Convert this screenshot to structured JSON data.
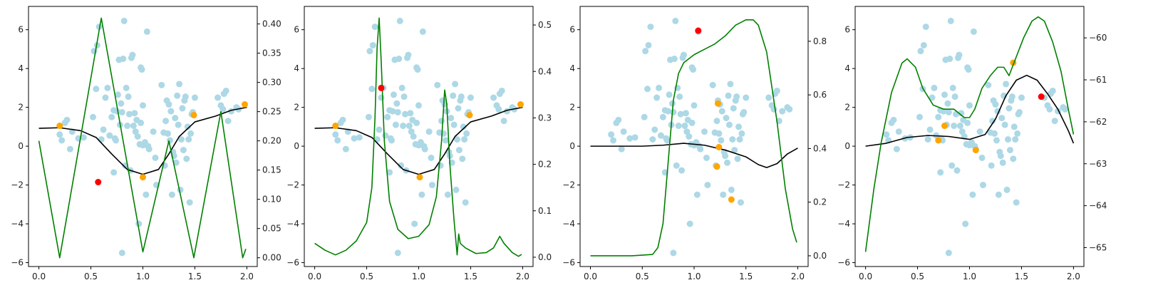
{
  "figure": {
    "background": "#ffffff"
  },
  "colors": {
    "scatter": "#add8e6",
    "orange": "#ffa500",
    "red": "#ff0000",
    "black_line": "#000000",
    "green_line": "#008000",
    "axes": "#000000"
  },
  "chart_data": [
    {
      "type": "scatter",
      "panel": 1,
      "xlim": [
        -0.1,
        2.1
      ],
      "ylim": [
        -6.2,
        7.2
      ],
      "y2lim": [
        -0.015,
        0.43
      ],
      "xticks": [
        0.0,
        0.5,
        1.0,
        1.5,
        2.0
      ],
      "xtick_labels": [
        "0.0",
        "0.5",
        "1.0",
        "1.5",
        "2.0"
      ],
      "yticks": [
        -6,
        -4,
        -2,
        0,
        2,
        4,
        6
      ],
      "ytick_labels": [
        "−6",
        "−4",
        "−2",
        "0",
        "2",
        "4",
        "6"
      ],
      "y2ticks": [
        0.0,
        0.05,
        0.1,
        0.15,
        0.2,
        0.25,
        0.3,
        0.35,
        0.4
      ],
      "y2tick_labels": [
        "0.00",
        "0.05",
        "0.10",
        "0.15",
        "0.20",
        "0.25",
        "0.30",
        "0.35",
        "0.40"
      ],
      "orange_points": [
        [
          0.2,
          1.05
        ],
        [
          1.0,
          -1.6
        ],
        [
          1.49,
          1.6
        ],
        [
          1.98,
          2.15
        ]
      ],
      "red_points": [
        [
          0.57,
          -1.85
        ]
      ],
      "black_line": [
        [
          0.0,
          0.92
        ],
        [
          0.2,
          0.95
        ],
        [
          0.4,
          0.8
        ],
        [
          0.55,
          0.45
        ],
        [
          0.7,
          -0.4
        ],
        [
          0.85,
          -1.2
        ],
        [
          1.0,
          -1.45
        ],
        [
          1.15,
          -1.2
        ],
        [
          1.25,
          -0.4
        ],
        [
          1.35,
          0.5
        ],
        [
          1.5,
          1.25
        ],
        [
          1.7,
          1.55
        ],
        [
          1.85,
          1.85
        ],
        [
          2.0,
          2.0
        ]
      ],
      "green_line": [
        [
          0.0,
          0.2
        ],
        [
          0.2,
          0.0
        ],
        [
          0.6,
          0.41
        ],
        [
          1.0,
          0.01
        ],
        [
          1.25,
          0.2
        ],
        [
          1.49,
          0.0
        ],
        [
          1.75,
          0.25
        ],
        [
          1.96,
          0.0
        ],
        [
          1.99,
          0.015
        ]
      ]
    },
    {
      "type": "scatter",
      "panel": 2,
      "xlim": [
        -0.1,
        2.1
      ],
      "ylim": [
        -6.2,
        7.2
      ],
      "y2lim": [
        -0.02,
        0.54
      ],
      "xticks": [
        0.0,
        0.5,
        1.0,
        1.5,
        2.0
      ],
      "xtick_labels": [
        "0.0",
        "0.5",
        "1.0",
        "1.5",
        "2.0"
      ],
      "yticks": [
        -6,
        -4,
        -2,
        0,
        2,
        4,
        6
      ],
      "ytick_labels": [
        "−6",
        "−4",
        "−2",
        "0",
        "2",
        "4",
        "6"
      ],
      "y2ticks": [
        0.0,
        0.1,
        0.2,
        0.3,
        0.4,
        0.5
      ],
      "y2tick_labels": [
        "0.0",
        "0.1",
        "0.2",
        "0.3",
        "0.4",
        "0.5"
      ],
      "orange_points": [
        [
          0.2,
          1.05
        ],
        [
          1.01,
          -1.6
        ],
        [
          1.49,
          1.6
        ],
        [
          1.98,
          2.15
        ]
      ],
      "red_points": [
        [
          0.64,
          3.0
        ]
      ],
      "black_line": [
        [
          0.0,
          0.92
        ],
        [
          0.2,
          0.95
        ],
        [
          0.4,
          0.8
        ],
        [
          0.55,
          0.45
        ],
        [
          0.7,
          -0.4
        ],
        [
          0.85,
          -1.2
        ],
        [
          1.0,
          -1.45
        ],
        [
          1.15,
          -1.2
        ],
        [
          1.25,
          -0.4
        ],
        [
          1.35,
          0.5
        ],
        [
          1.5,
          1.25
        ],
        [
          1.7,
          1.55
        ],
        [
          1.85,
          1.85
        ],
        [
          2.0,
          2.0
        ]
      ],
      "green_line": [
        [
          0.0,
          0.03
        ],
        [
          0.1,
          0.015
        ],
        [
          0.2,
          0.005
        ],
        [
          0.3,
          0.015
        ],
        [
          0.4,
          0.035
        ],
        [
          0.5,
          0.075
        ],
        [
          0.55,
          0.15
        ],
        [
          0.58,
          0.3
        ],
        [
          0.6,
          0.45
        ],
        [
          0.62,
          0.515
        ],
        [
          0.64,
          0.42
        ],
        [
          0.67,
          0.25
        ],
        [
          0.72,
          0.12
        ],
        [
          0.8,
          0.06
        ],
        [
          0.9,
          0.04
        ],
        [
          1.0,
          0.045
        ],
        [
          1.1,
          0.07
        ],
        [
          1.17,
          0.13
        ],
        [
          1.22,
          0.25
        ],
        [
          1.25,
          0.36
        ],
        [
          1.27,
          0.33
        ],
        [
          1.3,
          0.2
        ],
        [
          1.34,
          0.08
        ],
        [
          1.37,
          0.005
        ],
        [
          1.385,
          0.05
        ],
        [
          1.4,
          0.03
        ],
        [
          1.45,
          0.02
        ],
        [
          1.55,
          0.008
        ],
        [
          1.65,
          0.01
        ],
        [
          1.72,
          0.02
        ],
        [
          1.78,
          0.045
        ],
        [
          1.82,
          0.03
        ],
        [
          1.9,
          0.01
        ],
        [
          1.96,
          0.002
        ],
        [
          1.99,
          0.006
        ]
      ]
    },
    {
      "type": "scatter",
      "panel": 3,
      "xlim": [
        -0.1,
        2.1
      ],
      "ylim": [
        -6.2,
        7.2
      ],
      "y2lim": [
        -0.04,
        0.93
      ],
      "xticks": [
        0.0,
        0.5,
        1.0,
        1.5,
        2.0
      ],
      "xtick_labels": [
        "0.0",
        "0.5",
        "1.0",
        "1.5",
        "2.0"
      ],
      "yticks": [
        -6,
        -4,
        -2,
        0,
        2,
        4,
        6
      ],
      "ytick_labels": [
        "−6",
        "−4",
        "−2",
        "0",
        "2",
        "4",
        "6"
      ],
      "y2ticks": [
        0.0,
        0.2,
        0.4,
        0.6,
        0.8
      ],
      "y2tick_labels": [
        "0.0",
        "0.2",
        "0.4",
        "0.6",
        "0.8"
      ],
      "orange_points": [
        [
          1.23,
          2.2
        ],
        [
          1.24,
          -0.05
        ],
        [
          1.22,
          -1.05
        ],
        [
          1.36,
          -2.75
        ]
      ],
      "red_points": [
        [
          1.04,
          5.95
        ]
      ],
      "black_line": [
        [
          0.0,
          0.0
        ],
        [
          0.3,
          0.0
        ],
        [
          0.5,
          0.0
        ],
        [
          0.7,
          0.05
        ],
        [
          0.9,
          0.15
        ],
        [
          1.1,
          0.05
        ],
        [
          1.3,
          -0.2
        ],
        [
          1.5,
          -0.55
        ],
        [
          1.62,
          -0.95
        ],
        [
          1.7,
          -1.1
        ],
        [
          1.8,
          -0.9
        ],
        [
          1.9,
          -0.4
        ],
        [
          2.0,
          -0.1
        ]
      ],
      "green_line": [
        [
          0.0,
          0.0
        ],
        [
          0.4,
          0.0
        ],
        [
          0.6,
          0.005
        ],
        [
          0.65,
          0.03
        ],
        [
          0.7,
          0.12
        ],
        [
          0.75,
          0.35
        ],
        [
          0.8,
          0.58
        ],
        [
          0.85,
          0.68
        ],
        [
          0.9,
          0.72
        ],
        [
          1.0,
          0.75
        ],
        [
          1.1,
          0.77
        ],
        [
          1.2,
          0.79
        ],
        [
          1.3,
          0.82
        ],
        [
          1.4,
          0.86
        ],
        [
          1.5,
          0.88
        ],
        [
          1.57,
          0.88
        ],
        [
          1.62,
          0.86
        ],
        [
          1.7,
          0.76
        ],
        [
          1.8,
          0.5
        ],
        [
          1.88,
          0.25
        ],
        [
          1.95,
          0.1
        ],
        [
          1.99,
          0.05
        ]
      ]
    },
    {
      "type": "scatter",
      "panel": 4,
      "xlim": [
        -0.1,
        2.1
      ],
      "ylim": [
        -6.2,
        7.2
      ],
      "y2lim": [
        -65.45,
        -59.25
      ],
      "xticks": [
        0.0,
        0.5,
        1.0,
        1.5,
        2.0
      ],
      "xtick_labels": [
        "0.0",
        "0.5",
        "1.0",
        "1.5",
        "2.0"
      ],
      "yticks": [
        -6,
        -4,
        -2,
        0,
        2,
        4,
        6
      ],
      "ytick_labels": [
        "−6",
        "−4",
        "−2",
        "0",
        "2",
        "4",
        "6"
      ],
      "y2ticks": [
        -65,
        -64,
        -63,
        -62,
        -61,
        -60
      ],
      "y2tick_labels": [
        "−65",
        "−64",
        "−63",
        "−62",
        "−61",
        "−60"
      ],
      "orange_points": [
        [
          0.7,
          0.3
        ],
        [
          0.76,
          1.05
        ],
        [
          1.06,
          -0.2
        ],
        [
          1.42,
          4.3
        ]
      ],
      "red_points": [
        [
          1.69,
          2.55
        ]
      ],
      "black_line": [
        [
          0.0,
          0.0
        ],
        [
          0.2,
          0.15
        ],
        [
          0.4,
          0.45
        ],
        [
          0.6,
          0.55
        ],
        [
          0.8,
          0.5
        ],
        [
          1.0,
          0.35
        ],
        [
          1.15,
          0.6
        ],
        [
          1.25,
          1.4
        ],
        [
          1.35,
          2.6
        ],
        [
          1.45,
          3.4
        ],
        [
          1.55,
          3.65
        ],
        [
          1.65,
          3.4
        ],
        [
          1.75,
          2.7
        ],
        [
          1.85,
          1.9
        ],
        [
          1.95,
          0.8
        ],
        [
          2.0,
          0.15
        ]
      ],
      "green_line": [
        [
          0.0,
          -65.1
        ],
        [
          0.08,
          -63.6
        ],
        [
          0.15,
          -62.5
        ],
        [
          0.25,
          -61.3
        ],
        [
          0.35,
          -60.6
        ],
        [
          0.4,
          -60.5
        ],
        [
          0.48,
          -60.7
        ],
        [
          0.55,
          -61.2
        ],
        [
          0.65,
          -61.6
        ],
        [
          0.75,
          -61.7
        ],
        [
          0.85,
          -61.7
        ],
        [
          0.95,
          -61.9
        ],
        [
          1.0,
          -61.9
        ],
        [
          1.05,
          -61.7
        ],
        [
          1.12,
          -61.2
        ],
        [
          1.2,
          -60.9
        ],
        [
          1.27,
          -60.7
        ],
        [
          1.33,
          -60.7
        ],
        [
          1.38,
          -60.9
        ],
        [
          1.45,
          -60.45
        ],
        [
          1.52,
          -60.0
        ],
        [
          1.6,
          -59.6
        ],
        [
          1.66,
          -59.5
        ],
        [
          1.72,
          -59.6
        ],
        [
          1.8,
          -60.1
        ],
        [
          1.88,
          -60.8
        ],
        [
          1.95,
          -61.7
        ],
        [
          2.0,
          -62.3
        ]
      ]
    }
  ],
  "scatter_points": [
    [
      0.2,
      0.6
    ],
    [
      0.22,
      0.3
    ],
    [
      0.25,
      1.2
    ],
    [
      0.27,
      1.35
    ],
    [
      0.3,
      -0.15
    ],
    [
      0.32,
      0.75
    ],
    [
      0.38,
      0.4
    ],
    [
      0.43,
      0.45
    ],
    [
      0.52,
      1.5
    ],
    [
      0.53,
      4.9
    ],
    [
      0.55,
      2.95
    ],
    [
      0.56,
      5.2
    ],
    [
      0.58,
      6.15
    ],
    [
      0.6,
      0.35
    ],
    [
      0.62,
      0.85
    ],
    [
      0.64,
      2.5
    ],
    [
      0.66,
      3.0
    ],
    [
      0.68,
      0.55
    ],
    [
      0.7,
      1.5
    ],
    [
      0.72,
      1.85
    ],
    [
      0.73,
      0.4
    ],
    [
      0.74,
      0.3
    ],
    [
      0.75,
      1.8
    ],
    [
      0.76,
      2.65
    ],
    [
      0.77,
      4.45
    ],
    [
      0.78,
      1.1
    ],
    [
      0.79,
      2.2
    ],
    [
      0.8,
      1.75
    ],
    [
      0.81,
      4.5
    ],
    [
      0.82,
      6.45
    ],
    [
      0.83,
      -1.0
    ],
    [
      0.84,
      3.0
    ],
    [
      0.85,
      1.05
    ],
    [
      0.86,
      2.55
    ],
    [
      0.87,
      1.65
    ],
    [
      0.88,
      -1.25
    ],
    [
      0.89,
      4.55
    ],
    [
      0.9,
      4.7
    ],
    [
      0.92,
      1.7
    ],
    [
      0.93,
      0.75
    ],
    [
      0.94,
      1.35
    ],
    [
      0.95,
      0.5
    ],
    [
      0.96,
      -4.0
    ],
    [
      0.97,
      0.1
    ],
    [
      0.98,
      4.05
    ],
    [
      0.99,
      3.95
    ],
    [
      1.0,
      0.05
    ],
    [
      1.02,
      0.2
    ],
    [
      1.03,
      -2.5
    ],
    [
      1.04,
      5.9
    ],
    [
      1.05,
      0.0
    ],
    [
      1.06,
      -0.15
    ],
    [
      1.1,
      0.75
    ],
    [
      1.12,
      -0.6
    ],
    [
      1.13,
      -2.0
    ],
    [
      1.18,
      3.15
    ],
    [
      1.2,
      0.7
    ],
    [
      1.21,
      -1.0
    ],
    [
      1.22,
      1.3
    ],
    [
      1.23,
      2.35
    ],
    [
      1.24,
      0.65
    ],
    [
      1.25,
      2.15
    ],
    [
      1.26,
      0.3
    ],
    [
      1.27,
      1.8
    ],
    [
      1.28,
      -2.5
    ],
    [
      1.29,
      -0.3
    ],
    [
      1.3,
      -0.5
    ],
    [
      1.31,
      1.45
    ],
    [
      1.32,
      -0.85
    ],
    [
      1.33,
      2.6
    ],
    [
      1.34,
      1.1
    ],
    [
      1.35,
      3.2
    ],
    [
      1.36,
      -2.25
    ],
    [
      1.37,
      0.35
    ],
    [
      1.38,
      1.95
    ],
    [
      1.39,
      -0.2
    ],
    [
      1.4,
      2.35
    ],
    [
      1.41,
      2.55
    ],
    [
      1.42,
      -0.65
    ],
    [
      1.43,
      1.0
    ],
    [
      1.44,
      0.35
    ],
    [
      1.45,
      -2.9
    ],
    [
      1.46,
      0.65
    ],
    [
      1.47,
      1.65
    ],
    [
      1.48,
      1.75
    ],
    [
      1.5,
      2.5
    ],
    [
      1.72,
      2.5
    ],
    [
      1.75,
      2.1
    ],
    [
      1.77,
      1.9
    ],
    [
      1.78,
      2.7
    ],
    [
      1.8,
      2.85
    ],
    [
      1.82,
      1.3
    ],
    [
      1.85,
      1.8
    ],
    [
      1.9,
      2.0
    ],
    [
      1.92,
      1.9
    ],
    [
      0.8,
      -5.5
    ],
    [
      0.72,
      -1.35
    ],
    [
      1.0,
      2.1
    ],
    [
      0.98,
      1.2
    ],
    [
      0.91,
      1.05
    ]
  ]
}
